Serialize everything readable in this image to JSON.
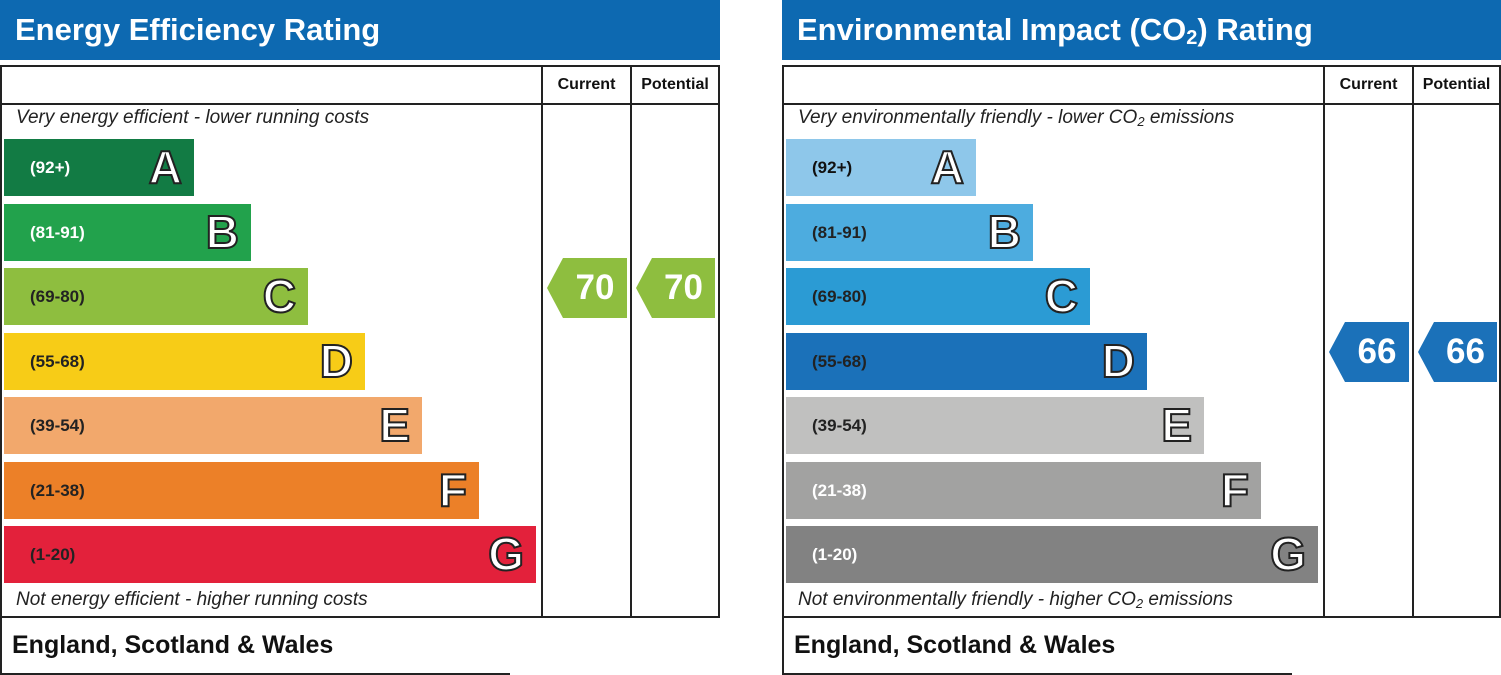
{
  "chart_data": [
    {
      "type": "bar",
      "title": "Energy Efficiency Rating",
      "columns": [
        "Current",
        "Potential"
      ],
      "top_caption": "Very energy efficient - lower running costs",
      "bottom_caption": "Not energy efficient - higher running costs",
      "bands": [
        {
          "letter": "A",
          "range": "(92+)",
          "color": "#127b44",
          "text_color": "#ffffff"
        },
        {
          "letter": "B",
          "range": "(81-91)",
          "color": "#22a24c",
          "text_color": "#ffffff"
        },
        {
          "letter": "C",
          "range": "(69-80)",
          "color": "#8ebe3f",
          "text_color": "#222222"
        },
        {
          "letter": "D",
          "range": "(55-68)",
          "color": "#f7cc17",
          "text_color": "#222222"
        },
        {
          "letter": "E",
          "range": "(39-54)",
          "color": "#f2a86c",
          "text_color": "#222222"
        },
        {
          "letter": "F",
          "range": "(21-38)",
          "color": "#ec8028",
          "text_color": "#222222"
        },
        {
          "letter": "G",
          "range": "(1-20)",
          "color": "#e3213b",
          "text_color": "#222222"
        }
      ],
      "current": {
        "value": 70,
        "band": "C",
        "color": "#8ebe3f"
      },
      "potential": {
        "value": 70,
        "band": "C",
        "color": "#8ebe3f"
      },
      "footer": "England, Scotland & Wales"
    },
    {
      "type": "bar",
      "title_parts": [
        "Environmental Impact (CO",
        "2",
        ") Rating"
      ],
      "columns": [
        "Current",
        "Potential"
      ],
      "top_caption_parts": [
        "Very environmentally friendly - lower CO",
        "2",
        " emissions"
      ],
      "bottom_caption_parts": [
        "Not environmentally friendly - higher CO",
        "2",
        " emissions"
      ],
      "bands": [
        {
          "letter": "A",
          "range": "(92+)",
          "color": "#8ec7ea",
          "text_color": "#111111"
        },
        {
          "letter": "B",
          "range": "(81-91)",
          "color": "#4dacdf",
          "text_color": "#222222"
        },
        {
          "letter": "C",
          "range": "(69-80)",
          "color": "#2b9bd4",
          "text_color": "#222222"
        },
        {
          "letter": "D",
          "range": "(55-68)",
          "color": "#1b71b9",
          "text_color": "#222222"
        },
        {
          "letter": "E",
          "range": "(39-54)",
          "color": "#c0c0bf",
          "text_color": "#222222"
        },
        {
          "letter": "F",
          "range": "(21-38)",
          "color": "#a2a2a1",
          "text_color": "#ffffff"
        },
        {
          "letter": "G",
          "range": "(1-20)",
          "color": "#828282",
          "text_color": "#ffffff"
        }
      ],
      "current": {
        "value": 66,
        "band": "D",
        "color": "#1b71b9"
      },
      "potential": {
        "value": 66,
        "band": "D",
        "color": "#1b71b9"
      },
      "footer": "England, Scotland & Wales"
    }
  ]
}
